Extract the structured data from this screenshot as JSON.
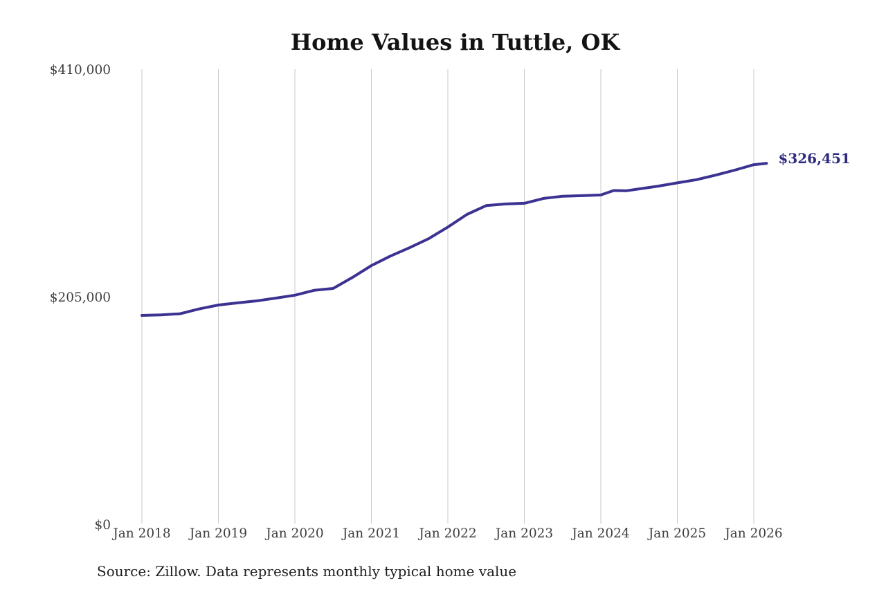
{
  "page": {
    "title": "Home Values in Tuttle, OK",
    "source_note": "Source: Zillow. Data represents monthly typical home value",
    "latest_value_label": "$326,451"
  },
  "colors": {
    "line": "#3b3292",
    "latest_value_label": "#2d2b7f",
    "gridline": "#c9c9c9",
    "axis_text": "#3f3f3f",
    "title_text": "#131313",
    "source_text": "#1e1e1e",
    "background": "#ffffff"
  },
  "chart_data": {
    "type": "line",
    "title": "Home Values in Tuttle, OK",
    "xlabel": "",
    "ylabel": "",
    "ylim": [
      0,
      410000
    ],
    "grid": "vertical-only",
    "legend": "none",
    "y_ticks": [
      {
        "label": "$0",
        "value": 0
      },
      {
        "label": "$205,000",
        "value": 205000
      },
      {
        "label": "$410,000",
        "value": 410000
      }
    ],
    "x_ticks": [
      {
        "label": "Jan 2018",
        "t": 0
      },
      {
        "label": "Jan 2019",
        "t": 12
      },
      {
        "label": "Jan 2020",
        "t": 24
      },
      {
        "label": "Jan 2021",
        "t": 36
      },
      {
        "label": "Jan 2022",
        "t": 48
      },
      {
        "label": "Jan 2023",
        "t": 60
      },
      {
        "label": "Jan 2024",
        "t": 72
      },
      {
        "label": "Jan 2025",
        "t": 84
      },
      {
        "label": "Jan 2026",
        "t": 96
      }
    ],
    "series": [
      {
        "name": "Monthly typical home value",
        "end_value": 326451,
        "points": [
          {
            "month": "Jan 2018",
            "t": 0,
            "value": 189400
          },
          {
            "month": "Apr 2018",
            "t": 3,
            "value": 189900
          },
          {
            "month": "Jul 2018",
            "t": 6,
            "value": 190900
          },
          {
            "month": "Oct 2018",
            "t": 9,
            "value": 195300
          },
          {
            "month": "Jan 2019",
            "t": 12,
            "value": 198800
          },
          {
            "month": "Apr 2019",
            "t": 15,
            "value": 200700
          },
          {
            "month": "Jul 2019",
            "t": 18,
            "value": 202500
          },
          {
            "month": "Oct 2019",
            "t": 21,
            "value": 205000
          },
          {
            "month": "Jan 2020",
            "t": 24,
            "value": 207600
          },
          {
            "month": "Apr 2020",
            "t": 27,
            "value": 212000
          },
          {
            "month": "Jul 2020",
            "t": 30,
            "value": 213700
          },
          {
            "month": "Oct 2020",
            "t": 33,
            "value": 223500
          },
          {
            "month": "Jan 2021",
            "t": 36,
            "value": 234300
          },
          {
            "month": "Apr 2021",
            "t": 39,
            "value": 242900
          },
          {
            "month": "Jul 2021",
            "t": 42,
            "value": 250400
          },
          {
            "month": "Oct 2021",
            "t": 45,
            "value": 258600
          },
          {
            "month": "Jan 2022",
            "t": 48,
            "value": 269000
          },
          {
            "month": "Apr 2022",
            "t": 51,
            "value": 280400
          },
          {
            "month": "Jul 2022",
            "t": 54,
            "value": 288300
          },
          {
            "month": "Oct 2022",
            "t": 57,
            "value": 289800
          },
          {
            "month": "Jan 2023",
            "t": 60,
            "value": 290400
          },
          {
            "month": "Apr 2023",
            "t": 63,
            "value": 294800
          },
          {
            "month": "Jul 2023",
            "t": 66,
            "value": 296800
          },
          {
            "month": "Oct 2023",
            "t": 69,
            "value": 297300
          },
          {
            "month": "Jan 2024",
            "t": 72,
            "value": 297900
          },
          {
            "month": "Mar 2024",
            "t": 74,
            "value": 301900
          },
          {
            "month": "May 2024",
            "t": 76,
            "value": 301700
          },
          {
            "month": "Jul 2024",
            "t": 78,
            "value": 303400
          },
          {
            "month": "Oct 2024",
            "t": 81,
            "value": 305900
          },
          {
            "month": "Jan 2025",
            "t": 84,
            "value": 308800
          },
          {
            "month": "Apr 2025",
            "t": 87,
            "value": 311700
          },
          {
            "month": "Jul 2025",
            "t": 90,
            "value": 315800
          },
          {
            "month": "Oct 2025",
            "t": 93,
            "value": 320300
          },
          {
            "month": "Jan 2026",
            "t": 96,
            "value": 325200
          },
          {
            "month": "Mar 2026",
            "t": 98,
            "value": 326451
          }
        ]
      }
    ]
  }
}
